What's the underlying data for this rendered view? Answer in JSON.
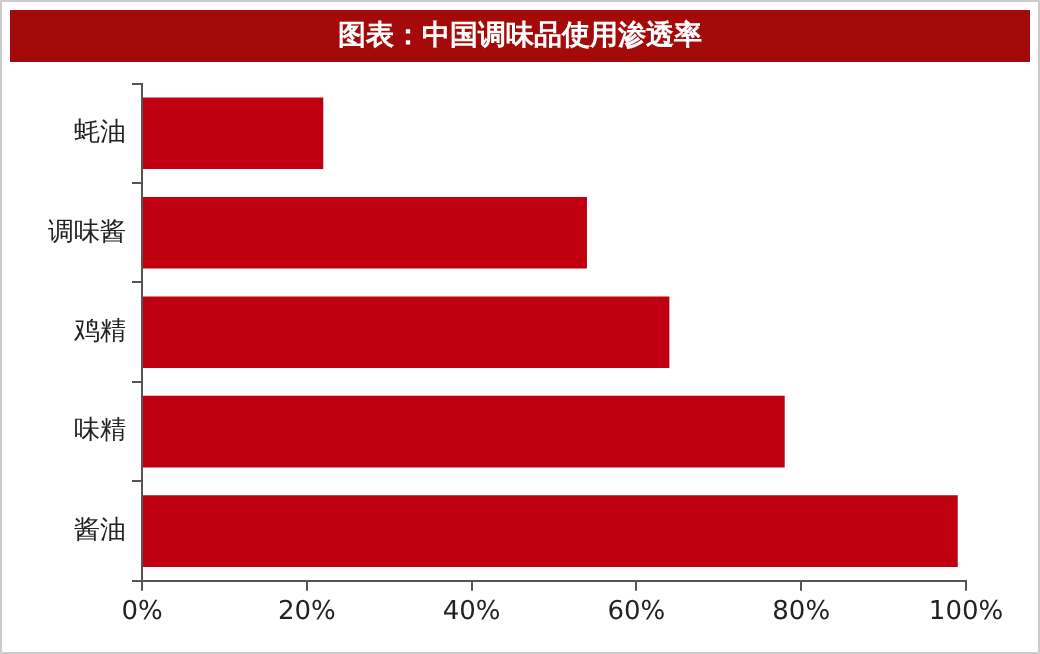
{
  "chart_data": {
    "type": "bar",
    "orientation": "horizontal",
    "title": "图表：中国调味品使用渗透率",
    "categories": [
      "蚝油",
      "调味酱",
      "鸡精",
      "味精",
      "酱油"
    ],
    "values": [
      22,
      54,
      64,
      78,
      99
    ],
    "color": "#c00010",
    "xlim": [
      0,
      100
    ],
    "xticks": [
      {
        "value": 0,
        "label": "0%"
      },
      {
        "value": 20,
        "label": "20%"
      },
      {
        "value": 40,
        "label": "40%"
      },
      {
        "value": 60,
        "label": "60%"
      },
      {
        "value": 80,
        "label": "80%"
      },
      {
        "value": 100,
        "label": "100%"
      }
    ],
    "grid": false,
    "legend": false
  }
}
